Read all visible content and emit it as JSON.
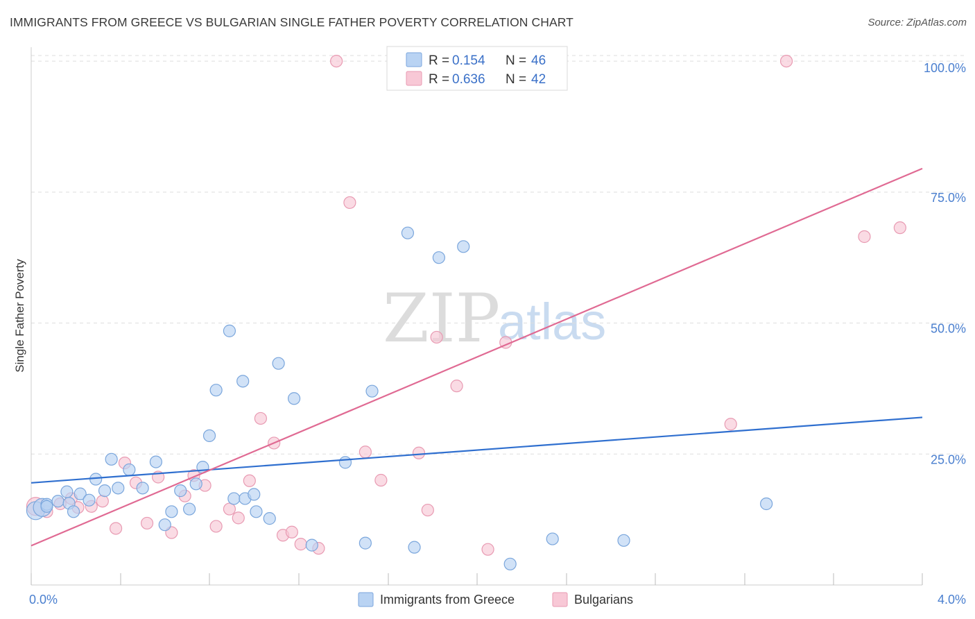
{
  "title": "IMMIGRANTS FROM GREECE VS BULGARIAN SINGLE FATHER POVERTY CORRELATION CHART",
  "source": "Source: ZipAtlas.com",
  "watermark": {
    "zip": "ZIP",
    "atlas": "atlas"
  },
  "colors": {
    "blue_fill": "#b9d3f3",
    "blue_stroke": "#7aa6dc",
    "blue_line": "#2f6fcf",
    "pink_fill": "#f8c8d6",
    "pink_stroke": "#e89ab2",
    "pink_line": "#e06a93",
    "axis_label": "#4a7fcf",
    "grid": "#dddddd"
  },
  "legend": {
    "r_label": "R =",
    "n_label": "N =",
    "rows": [
      {
        "r": "0.154",
        "n": "46",
        "series": "blue"
      },
      {
        "r": "0.636",
        "n": "42",
        "series": "pink"
      }
    ]
  },
  "bottom_legend": [
    "Immigrants from Greece",
    "Bulgarians"
  ],
  "chart_data": {
    "type": "scatter",
    "title": "IMMIGRANTS FROM GREECE VS BULGARIAN SINGLE FATHER POVERTY CORRELATION CHART",
    "xlabel": "",
    "ylabel": "Single Father Poverty",
    "xlim": [
      0,
      4.0
    ],
    "ylim": [
      0,
      102
    ],
    "x_tick_labels": [
      "0.0%",
      "4.0%"
    ],
    "y_ticks": [
      25,
      50,
      75,
      100
    ],
    "y_tick_labels": [
      "25.0%",
      "50.0%",
      "75.0%",
      "100.0%"
    ],
    "series": [
      {
        "name": "Immigrants from Greece",
        "color": "blue",
        "r": 0.154,
        "n": 46,
        "trend": {
          "x": [
            0,
            4.0
          ],
          "y": [
            19.5,
            32
          ]
        },
        "points": [
          [
            0.02,
            14.2
          ],
          [
            0.05,
            14.8
          ],
          [
            0.07,
            15.4
          ],
          [
            0.12,
            16.0
          ],
          [
            0.17,
            15.6
          ],
          [
            0.16,
            17.8
          ],
          [
            0.19,
            14.0
          ],
          [
            0.22,
            17.4
          ],
          [
            0.26,
            16.2
          ],
          [
            0.29,
            20.2
          ],
          [
            0.33,
            18.0
          ],
          [
            0.39,
            18.5
          ],
          [
            0.36,
            24.0
          ],
          [
            0.44,
            22.0
          ],
          [
            0.5,
            18.5
          ],
          [
            0.56,
            23.5
          ],
          [
            0.6,
            11.5
          ],
          [
            0.63,
            14.0
          ],
          [
            0.67,
            18.0
          ],
          [
            0.71,
            14.5
          ],
          [
            0.74,
            19.3
          ],
          [
            0.77,
            22.5
          ],
          [
            0.8,
            28.5
          ],
          [
            0.83,
            37.2
          ],
          [
            0.91,
            16.5
          ],
          [
            0.96,
            16.5
          ],
          [
            0.89,
            48.5
          ],
          [
            0.95,
            38.9
          ],
          [
            1.0,
            17.3
          ],
          [
            1.01,
            14.0
          ],
          [
            1.07,
            12.7
          ],
          [
            1.11,
            42.3
          ],
          [
            1.18,
            35.6
          ],
          [
            1.26,
            7.6
          ],
          [
            1.41,
            23.4
          ],
          [
            1.5,
            8.0
          ],
          [
            1.53,
            37.0
          ],
          [
            1.69,
            67.2
          ],
          [
            1.72,
            7.2
          ],
          [
            1.83,
            62.5
          ],
          [
            1.94,
            64.6
          ],
          [
            2.15,
            4.0
          ],
          [
            2.34,
            8.8
          ],
          [
            2.66,
            8.5
          ],
          [
            3.3,
            15.5
          ],
          [
            0.07,
            15.0
          ]
        ]
      },
      {
        "name": "Bulgarians",
        "color": "pink",
        "r": 0.636,
        "n": 42,
        "trend": {
          "x": [
            0,
            4.0
          ],
          "y": [
            7.5,
            79.5
          ]
        },
        "points": [
          [
            0.02,
            15.0
          ],
          [
            0.07,
            14.0
          ],
          [
            0.13,
            15.5
          ],
          [
            0.18,
            16.5
          ],
          [
            0.21,
            14.8
          ],
          [
            0.27,
            15.0
          ],
          [
            0.32,
            16.0
          ],
          [
            0.38,
            10.8
          ],
          [
            0.42,
            23.3
          ],
          [
            0.47,
            19.5
          ],
          [
            0.52,
            11.8
          ],
          [
            0.57,
            20.6
          ],
          [
            0.63,
            10.0
          ],
          [
            0.69,
            17.0
          ],
          [
            0.73,
            20.9
          ],
          [
            0.78,
            19.0
          ],
          [
            0.83,
            11.2
          ],
          [
            0.89,
            14.5
          ],
          [
            0.93,
            12.8
          ],
          [
            0.98,
            19.9
          ],
          [
            1.03,
            31.8
          ],
          [
            1.09,
            27.1
          ],
          [
            1.13,
            9.5
          ],
          [
            1.17,
            10.1
          ],
          [
            1.21,
            7.8
          ],
          [
            1.29,
            7.0
          ],
          [
            1.37,
            100.0
          ],
          [
            1.43,
            73.0
          ],
          [
            1.5,
            25.4
          ],
          [
            1.57,
            20.0
          ],
          [
            1.74,
            25.2
          ],
          [
            1.78,
            14.3
          ],
          [
            1.82,
            47.3
          ],
          [
            1.91,
            38.0
          ],
          [
            2.05,
            6.8
          ],
          [
            2.13,
            46.3
          ],
          [
            2.2,
            100.0
          ],
          [
            2.33,
            100.0
          ],
          [
            3.14,
            30.7
          ],
          [
            3.39,
            100.0
          ],
          [
            3.74,
            66.5
          ],
          [
            3.9,
            68.2
          ]
        ]
      }
    ]
  }
}
